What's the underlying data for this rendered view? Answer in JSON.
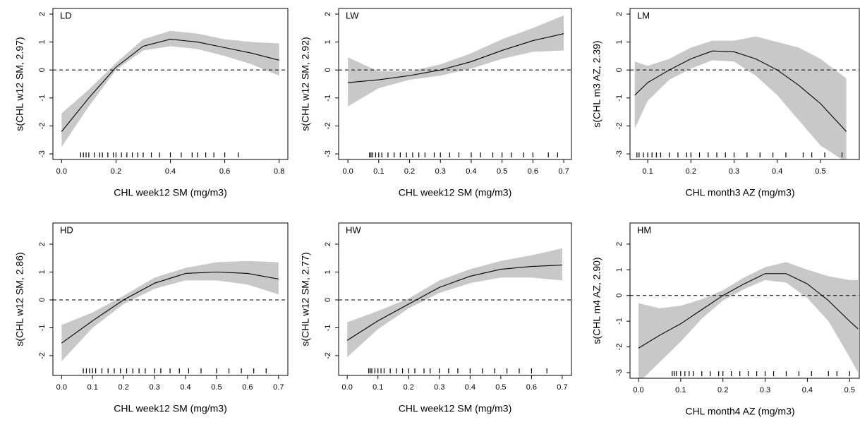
{
  "chart_data": [
    {
      "type": "line",
      "title": "LD",
      "x_label": "CHL week12 SM (mg/m3)",
      "y_label": "s(CHL w12 SM, 2.97)",
      "x": [
        0,
        0.1,
        0.2,
        0.3,
        0.4,
        0.5,
        0.6,
        0.7,
        0.8
      ],
      "fit": [
        -2.2,
        -1.0,
        0.1,
        0.85,
        1.1,
        1.0,
        0.8,
        0.6,
        0.35
      ],
      "lower": [
        -2.75,
        -1.3,
        0.0,
        0.7,
        0.85,
        0.75,
        0.5,
        0.2,
        -0.2
      ],
      "upper": [
        -1.55,
        -0.7,
        0.25,
        1.1,
        1.4,
        1.3,
        1.1,
        1.0,
        0.95
      ],
      "rug": [
        0.07,
        0.08,
        0.09,
        0.1,
        0.12,
        0.14,
        0.15,
        0.17,
        0.19,
        0.2,
        0.22,
        0.24,
        0.26,
        0.28,
        0.3,
        0.33,
        0.36,
        0.4,
        0.44,
        0.48,
        0.5,
        0.53,
        0.56,
        0.6,
        0.65
      ],
      "hline": 0,
      "band_color": "#c8c8c8",
      "line_color": "#000000",
      "xlim": [
        -0.032,
        0.832
      ],
      "ylim": [
        -3.2,
        2.2
      ],
      "xticks": [
        {
          "value": 0,
          "label": "0.0"
        },
        0.2,
        0.4,
        0.6,
        0.8
      ],
      "yticks": [
        -3,
        -2,
        -1,
        0,
        1,
        2
      ]
    },
    {
      "type": "line",
      "title": "LW",
      "x_label": "CHL week12 SM (mg/m3)",
      "y_label": "s(CHL w12 SM, 2.92)",
      "x": [
        0,
        0.1,
        0.2,
        0.3,
        0.4,
        0.5,
        0.6,
        0.7
      ],
      "fit": [
        -0.45,
        -0.35,
        -0.2,
        0.0,
        0.3,
        0.7,
        1.05,
        1.3
      ],
      "lower": [
        -1.3,
        -0.65,
        -0.35,
        -0.2,
        0.05,
        0.4,
        0.65,
        0.7
      ],
      "upper": [
        0.45,
        -0.05,
        -0.05,
        0.2,
        0.6,
        1.1,
        1.5,
        1.95
      ],
      "rug": [
        0.07,
        0.075,
        0.08,
        0.09,
        0.1,
        0.11,
        0.13,
        0.15,
        0.17,
        0.19,
        0.21,
        0.23,
        0.25,
        0.28,
        0.3,
        0.33,
        0.36,
        0.4,
        0.43,
        0.47,
        0.5,
        0.53,
        0.57,
        0.6,
        0.65,
        0.68
      ],
      "hline": 0,
      "band_color": "#c8c8c8",
      "line_color": "#000000",
      "xlim": [
        -0.03,
        0.725
      ],
      "ylim": [
        -3.2,
        2.2
      ],
      "xticks": [
        {
          "value": 0,
          "label": "0.0"
        },
        0.1,
        0.2,
        0.3,
        0.4,
        0.5,
        0.6,
        0.7
      ],
      "yticks": [
        -3,
        -2,
        -1,
        0,
        1,
        2
      ]
    },
    {
      "type": "line",
      "title": "LM",
      "x_label": "CHL month3 AZ (mg/m3)",
      "y_label": "s(CHL m3 AZ, 2.39)",
      "x": [
        0.07,
        0.1,
        0.15,
        0.2,
        0.25,
        0.3,
        0.35,
        0.4,
        0.45,
        0.5,
        0.56
      ],
      "fit": [
        -0.9,
        -0.45,
        0.0,
        0.4,
        0.68,
        0.65,
        0.4,
        0.0,
        -0.55,
        -1.2,
        -2.2
      ],
      "lower": [
        -2.1,
        -1.1,
        -0.35,
        0.05,
        0.35,
        0.3,
        -0.2,
        -0.9,
        -1.8,
        -2.7,
        -3.3
      ],
      "upper": [
        0.3,
        0.15,
        0.4,
        0.8,
        1.05,
        1.05,
        1.2,
        1.0,
        0.8,
        0.4,
        -0.3
      ],
      "rug": [
        0.075,
        0.08,
        0.09,
        0.1,
        0.11,
        0.12,
        0.13,
        0.15,
        0.17,
        0.19,
        0.2,
        0.22,
        0.24,
        0.26,
        0.28,
        0.3,
        0.33,
        0.36,
        0.39,
        0.42,
        0.46,
        0.48,
        0.51,
        0.55
      ],
      "hline": 0,
      "band_color": "#c8c8c8",
      "line_color": "#000000",
      "xlim": [
        0.059,
        0.59
      ],
      "ylim": [
        -3.2,
        2.2
      ],
      "xticks": [
        0.1,
        0.2,
        0.3,
        0.4,
        0.5
      ],
      "yticks": [
        -3,
        -2,
        -1,
        0,
        1,
        2
      ]
    },
    {
      "type": "line",
      "title": "HD",
      "x_label": "CHL week12 SM (mg/m3)",
      "y_label": "s(CHL w12 SM, 2.86)",
      "x": [
        0,
        0.1,
        0.2,
        0.3,
        0.4,
        0.5,
        0.6,
        0.7
      ],
      "fit": [
        -1.55,
        -0.75,
        0.0,
        0.6,
        0.95,
        1.0,
        0.95,
        0.75
      ],
      "lower": [
        -2.2,
        -1.0,
        -0.15,
        0.4,
        0.7,
        0.7,
        0.55,
        0.2
      ],
      "upper": [
        -0.9,
        -0.45,
        0.15,
        0.8,
        1.15,
        1.35,
        1.4,
        1.35
      ],
      "rug": [
        0.07,
        0.08,
        0.09,
        0.1,
        0.11,
        0.13,
        0.15,
        0.17,
        0.19,
        0.21,
        0.23,
        0.25,
        0.27,
        0.3,
        0.32,
        0.35,
        0.38,
        0.41,
        0.45,
        0.5,
        0.54,
        0.58,
        0.62,
        0.66
      ],
      "hline": 0,
      "band_color": "#c8c8c8",
      "line_color": "#000000",
      "xlim": [
        -0.028,
        0.73
      ],
      "ylim": [
        -2.71,
        2.76
      ],
      "xticks": [
        {
          "value": 0,
          "label": "0.0"
        },
        0.1,
        0.2,
        0.3,
        0.4,
        0.5,
        0.6,
        0.7
      ],
      "yticks": [
        -2,
        -1,
        0,
        1,
        2
      ]
    },
    {
      "type": "line",
      "title": "HW",
      "x_label": "CHL week12 SM (mg/m3)",
      "y_label": "s(CHL w12 SM, 2.77)",
      "x": [
        0,
        0.1,
        0.2,
        0.3,
        0.4,
        0.5,
        0.6,
        0.7
      ],
      "fit": [
        -1.45,
        -0.75,
        -0.15,
        0.45,
        0.85,
        1.1,
        1.2,
        1.25
      ],
      "lower": [
        -2.05,
        -1.05,
        -0.3,
        0.25,
        0.6,
        0.8,
        0.8,
        0.7
      ],
      "upper": [
        -0.8,
        -0.4,
        0.05,
        0.7,
        1.1,
        1.4,
        1.6,
        1.85
      ],
      "rug": [
        0.07,
        0.075,
        0.08,
        0.09,
        0.1,
        0.11,
        0.12,
        0.14,
        0.16,
        0.18,
        0.2,
        0.22,
        0.25,
        0.27,
        0.3,
        0.33,
        0.36,
        0.4,
        0.44,
        0.48,
        0.52,
        0.56,
        0.6,
        0.65
      ],
      "hline": 0,
      "band_color": "#c8c8c8",
      "line_color": "#000000",
      "xlim": [
        -0.028,
        0.73
      ],
      "ylim": [
        -2.71,
        2.76
      ],
      "xticks": [
        {
          "value": 0,
          "label": "0.0"
        },
        0.1,
        0.2,
        0.3,
        0.4,
        0.5,
        0.6,
        0.7
      ],
      "yticks": [
        -2,
        -1,
        0,
        1,
        2
      ]
    },
    {
      "type": "line",
      "title": "HM",
      "x_label": "CHL month4 AZ (mg/m3)",
      "y_label": "s(CHL m4 AZ, 2.90)",
      "x": [
        0,
        0.05,
        0.1,
        0.15,
        0.2,
        0.25,
        0.3,
        0.35,
        0.4,
        0.45,
        0.5,
        0.52
      ],
      "fit": [
        -2.05,
        -1.55,
        -1.1,
        -0.55,
        0.0,
        0.45,
        0.85,
        0.85,
        0.45,
        -0.2,
        -1.0,
        -1.3
      ],
      "lower": [
        -3.4,
        -2.6,
        -1.8,
        -0.9,
        -0.2,
        0.25,
        0.6,
        0.5,
        -0.1,
        -1.0,
        -2.4,
        -3.0
      ],
      "upper": [
        -0.3,
        -0.5,
        -0.4,
        -0.15,
        0.2,
        0.7,
        1.1,
        1.3,
        1.0,
        0.75,
        0.6,
        0.6
      ],
      "rug": [
        0.08,
        0.085,
        0.09,
        0.1,
        0.11,
        0.12,
        0.13,
        0.15,
        0.17,
        0.19,
        0.2,
        0.22,
        0.24,
        0.26,
        0.28,
        0.3,
        0.32,
        0.35,
        0.38,
        0.41,
        0.45,
        0.47,
        0.5
      ],
      "hline": 0,
      "band_color": "#c8c8c8",
      "line_color": "#000000",
      "xlim": [
        -0.02,
        0.523
      ],
      "ylim": [
        -3.22,
        2.82
      ],
      "xticks": [
        {
          "value": 0,
          "label": "0.0"
        },
        0.1,
        0.2,
        0.3,
        0.4,
        0.5
      ],
      "yticks": [
        -3,
        -2,
        -1,
        0,
        1,
        2
      ]
    }
  ]
}
